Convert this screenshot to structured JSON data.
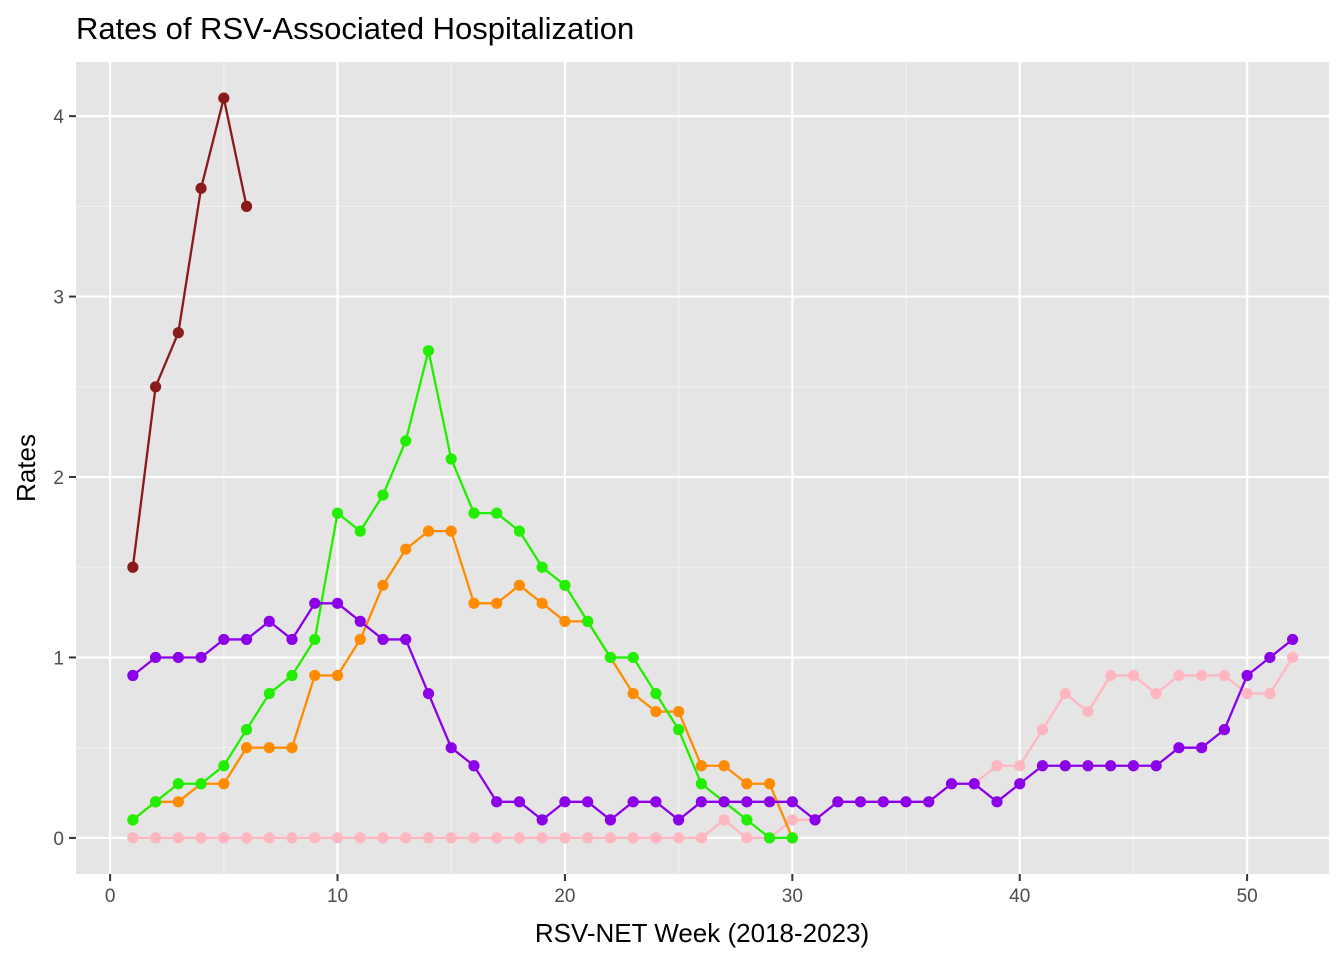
{
  "chart_data": {
    "type": "line",
    "title": "Rates of RSV-Associated Hospitalization",
    "xlabel": "RSV-NET Week (2018-2023)",
    "ylabel": "Rates",
    "xlim": [
      -1.5,
      53.6
    ],
    "ylim": [
      -0.2,
      4.3
    ],
    "x_ticks": [
      0,
      10,
      20,
      30,
      40,
      50
    ],
    "y_ticks": [
      0,
      1,
      2,
      3,
      4
    ],
    "grid": true,
    "legend": "none",
    "background": "#e5e5e5",
    "series": [
      {
        "color": "#8b1a1a",
        "x": [
          1,
          2,
          3,
          4,
          5,
          6
        ],
        "values": [
          1.5,
          2.5,
          2.8,
          3.6,
          4.1,
          3.5
        ]
      },
      {
        "color": "#ffb6c1",
        "x": [
          1,
          2,
          3,
          4,
          5,
          6,
          7,
          8,
          9,
          10,
          11,
          12,
          13,
          14,
          15,
          16,
          17,
          18,
          19,
          20,
          21,
          22,
          23,
          24,
          25,
          26,
          27,
          28,
          29,
          30,
          31,
          32,
          33,
          34,
          35,
          36,
          37,
          38,
          39,
          40,
          41,
          42,
          43,
          44,
          45,
          46,
          47,
          48,
          49,
          50,
          51,
          52
        ],
        "values": [
          0,
          0,
          0,
          0,
          0,
          0,
          0,
          0,
          0,
          0,
          0,
          0,
          0,
          0,
          0,
          0,
          0,
          0,
          0,
          0,
          0,
          0,
          0,
          0,
          0,
          0,
          0.1,
          0,
          0,
          0.1,
          0.1,
          0.2,
          0.2,
          0.2,
          0.2,
          0.2,
          0.3,
          0.3,
          0.4,
          0.4,
          0.6,
          0.8,
          0.7,
          0.9,
          0.9,
          0.8,
          0.9,
          0.9,
          0.9,
          0.8,
          0.8,
          1.0
        ]
      },
      {
        "color": "#ff8c00",
        "x": [
          1,
          2,
          3,
          4,
          5,
          6,
          7,
          8,
          9,
          10,
          11,
          12,
          13,
          14,
          15,
          16,
          17,
          18,
          19,
          20,
          21,
          22,
          23,
          24,
          25,
          26,
          27,
          28,
          29,
          30
        ],
        "values": [
          0.1,
          0.2,
          0.2,
          0.3,
          0.3,
          0.5,
          0.5,
          0.5,
          0.9,
          0.9,
          1.1,
          1.4,
          1.6,
          1.7,
          1.7,
          1.3,
          1.3,
          1.4,
          1.3,
          1.2,
          1.2,
          1.0,
          0.8,
          0.7,
          0.7,
          0.4,
          0.4,
          0.3,
          0.3,
          0.0
        ]
      },
      {
        "color": "#22ee00",
        "x": [
          1,
          2,
          3,
          4,
          5,
          6,
          7,
          8,
          9,
          10,
          11,
          12,
          13,
          14,
          15,
          16,
          17,
          18,
          19,
          20,
          21,
          22,
          23,
          24,
          25,
          26,
          27,
          28,
          29,
          30
        ],
        "values": [
          0.1,
          0.2,
          0.3,
          0.3,
          0.4,
          0.6,
          0.8,
          0.9,
          1.1,
          1.8,
          1.7,
          1.9,
          2.2,
          2.7,
          2.1,
          1.8,
          1.8,
          1.7,
          1.5,
          1.4,
          1.2,
          1.0,
          1.0,
          0.8,
          0.6,
          0.3,
          0.2,
          0.1,
          0.0,
          0.0
        ]
      },
      {
        "color": "#8b00e8",
        "x": [
          1,
          2,
          3,
          4,
          5,
          6,
          7,
          8,
          9,
          10,
          11,
          12,
          13,
          14,
          15,
          16,
          17,
          18,
          19,
          20,
          21,
          22,
          23,
          24,
          25,
          26,
          27,
          28,
          29,
          30,
          31,
          32,
          33,
          34,
          35,
          36,
          37,
          38,
          39,
          40,
          41,
          42,
          43,
          44,
          45,
          46,
          47,
          48,
          49,
          50,
          51,
          52
        ],
        "values": [
          0.9,
          1.0,
          1.0,
          1.0,
          1.1,
          1.1,
          1.2,
          1.1,
          1.3,
          1.3,
          1.2,
          1.1,
          1.1,
          0.8,
          0.5,
          0.4,
          0.2,
          0.2,
          0.1,
          0.2,
          0.2,
          0.1,
          0.2,
          0.2,
          0.1,
          0.2,
          0.2,
          0.2,
          0.2,
          0.2,
          0.1,
          0.2,
          0.2,
          0.2,
          0.2,
          0.2,
          0.3,
          0.3,
          0.2,
          0.3,
          0.4,
          0.4,
          0.4,
          0.4,
          0.4,
          0.4,
          0.5,
          0.5,
          0.6,
          0.9,
          1.0,
          1.1
        ]
      }
    ]
  }
}
